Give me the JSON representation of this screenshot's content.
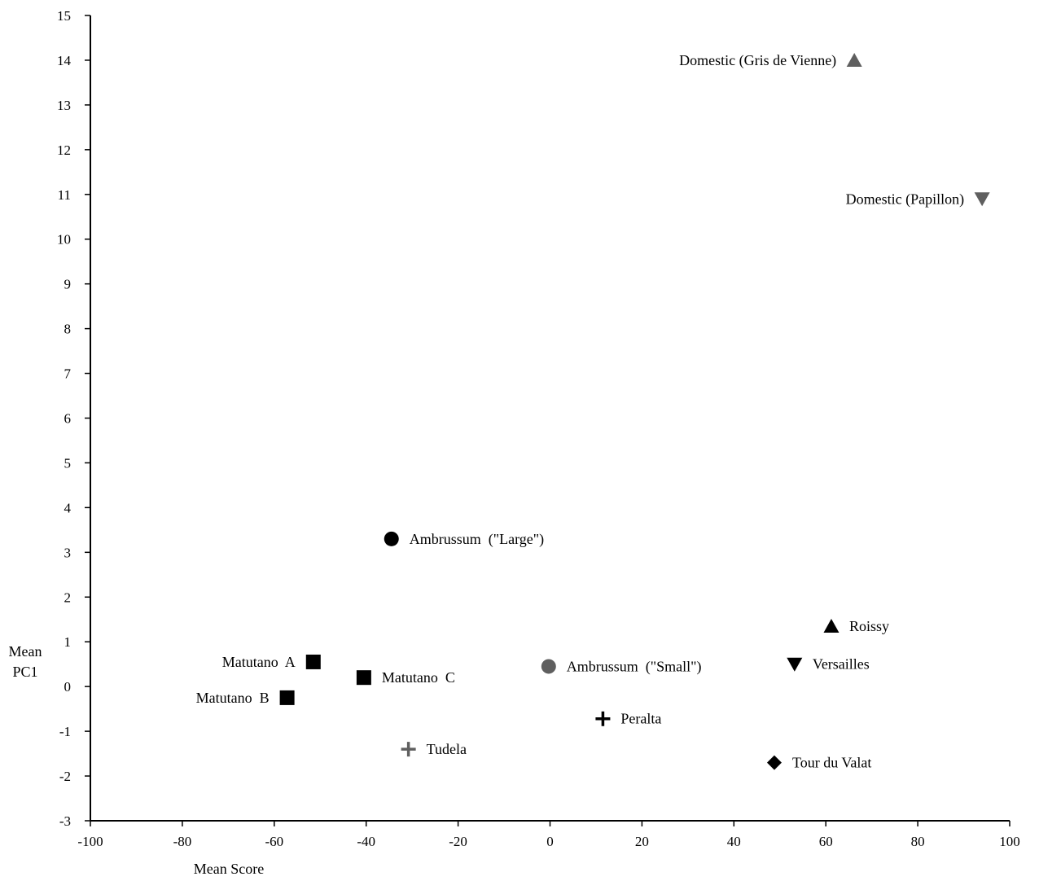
{
  "chart_data": {
    "type": "scatter",
    "title": "",
    "xlabel": "Mean Score",
    "ylabel_lines": [
      "Mean",
      "PC1"
    ],
    "xlim": [
      -100,
      100
    ],
    "ylim": [
      -3,
      15
    ],
    "x_ticks": [
      -100,
      -80,
      -60,
      -40,
      -20,
      0,
      20,
      40,
      60,
      80,
      100
    ],
    "y_ticks": [
      -3,
      -2,
      -1,
      0,
      1,
      2,
      3,
      4,
      5,
      6,
      7,
      8,
      9,
      10,
      11,
      12,
      13,
      14,
      15
    ],
    "grid": false,
    "legend": "none",
    "colors": {
      "black": "#000000",
      "gray": "#5f5f5f"
    },
    "points": [
      {
        "label": "Domestic (Gris de Vienne)",
        "x": 66.2,
        "y": 14.0,
        "marker": "triangle-up",
        "color": "gray",
        "label_side": "left"
      },
      {
        "label": "Domestic (Papillon)",
        "x": 94.0,
        "y": 10.9,
        "marker": "triangle-down",
        "color": "gray",
        "label_side": "left"
      },
      {
        "label": "Ambrussum  (\"Large\")",
        "x": -34.5,
        "y": 3.3,
        "marker": "circle",
        "color": "black",
        "label_side": "right"
      },
      {
        "label": "Roissy",
        "x": 61.2,
        "y": 1.35,
        "marker": "triangle-up",
        "color": "black",
        "label_side": "right"
      },
      {
        "label": "Versailles",
        "x": 53.2,
        "y": 0.5,
        "marker": "triangle-down",
        "color": "black",
        "label_side": "right"
      },
      {
        "label": "Ambrussum  (\"Small\")",
        "x": -0.3,
        "y": 0.45,
        "marker": "circle",
        "color": "gray",
        "label_side": "right"
      },
      {
        "label": "Matutano  A",
        "x": -51.5,
        "y": 0.55,
        "marker": "square",
        "color": "black",
        "label_side": "left"
      },
      {
        "label": "Matutano  C",
        "x": -40.5,
        "y": 0.2,
        "marker": "square",
        "color": "black",
        "label_side": "right"
      },
      {
        "label": "Matutano  B",
        "x": -57.2,
        "y": -0.25,
        "marker": "square",
        "color": "black",
        "label_side": "left"
      },
      {
        "label": "Peralta",
        "x": 11.5,
        "y": -0.72,
        "marker": "plus",
        "color": "black",
        "label_side": "right"
      },
      {
        "label": "Tudela",
        "x": -30.8,
        "y": -1.4,
        "marker": "plus",
        "color": "gray",
        "label_side": "right"
      },
      {
        "label": "Tour du Valat",
        "x": 48.8,
        "y": -1.7,
        "marker": "diamond",
        "color": "black",
        "label_side": "right"
      }
    ]
  }
}
